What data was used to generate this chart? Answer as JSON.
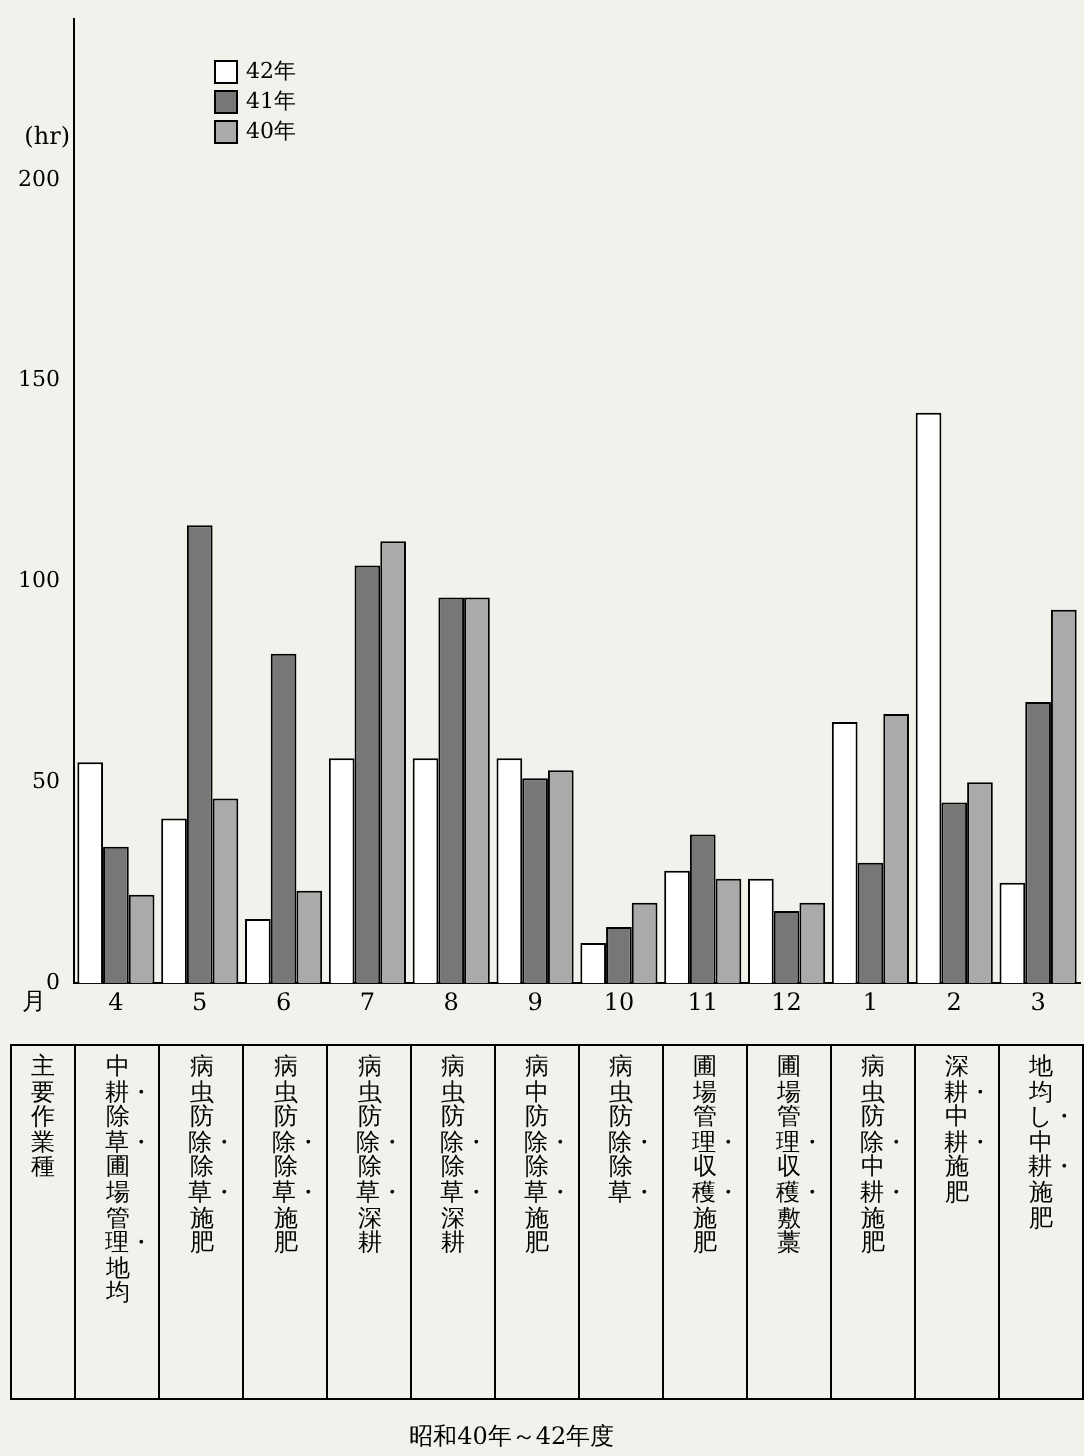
{
  "chart_data": {
    "type": "bar",
    "xlabel": "月",
    "ylabel": "(hr)",
    "categories": [
      "4",
      "5",
      "6",
      "7",
      "8",
      "9",
      "10",
      "11",
      "12",
      "1",
      "2",
      "3"
    ],
    "series": [
      {
        "name": "42年",
        "color": "#ffffff",
        "values": [
          55,
          41,
          16,
          56,
          56,
          56,
          10,
          28,
          26,
          65,
          142,
          25
        ]
      },
      {
        "name": "41年",
        "color": "#777777",
        "values": [
          34,
          114,
          82,
          104,
          96,
          51,
          14,
          37,
          18,
          30,
          45,
          70
        ]
      },
      {
        "name": "40年",
        "color": "#aaaaaa",
        "values": [
          22,
          46,
          23,
          110,
          96,
          53,
          20,
          26,
          20,
          67,
          50,
          93
        ]
      }
    ],
    "ylim": [
      0,
      240
    ],
    "yticks": [
      0,
      50,
      100,
      150,
      200
    ],
    "grid": false,
    "legend": "top left",
    "annotations": [
      "主要作業種",
      "中耕・除草・圃場管理・地均",
      "病虫防除・除草・施肥",
      "病虫防除・除草・施肥",
      "病虫防除・除草・深耕",
      "病虫防除・除草・深耕",
      "病中防除・除草・施肥",
      "病虫防除・除草・",
      "圃場管理・収穫・施肥",
      "圃場管理・収穫・敷藁",
      "病虫防除・中耕・施肥",
      "深耕・中耕・施肥",
      "地均し・中耕・施肥",
      "昭和40年～42年度"
    ]
  }
}
